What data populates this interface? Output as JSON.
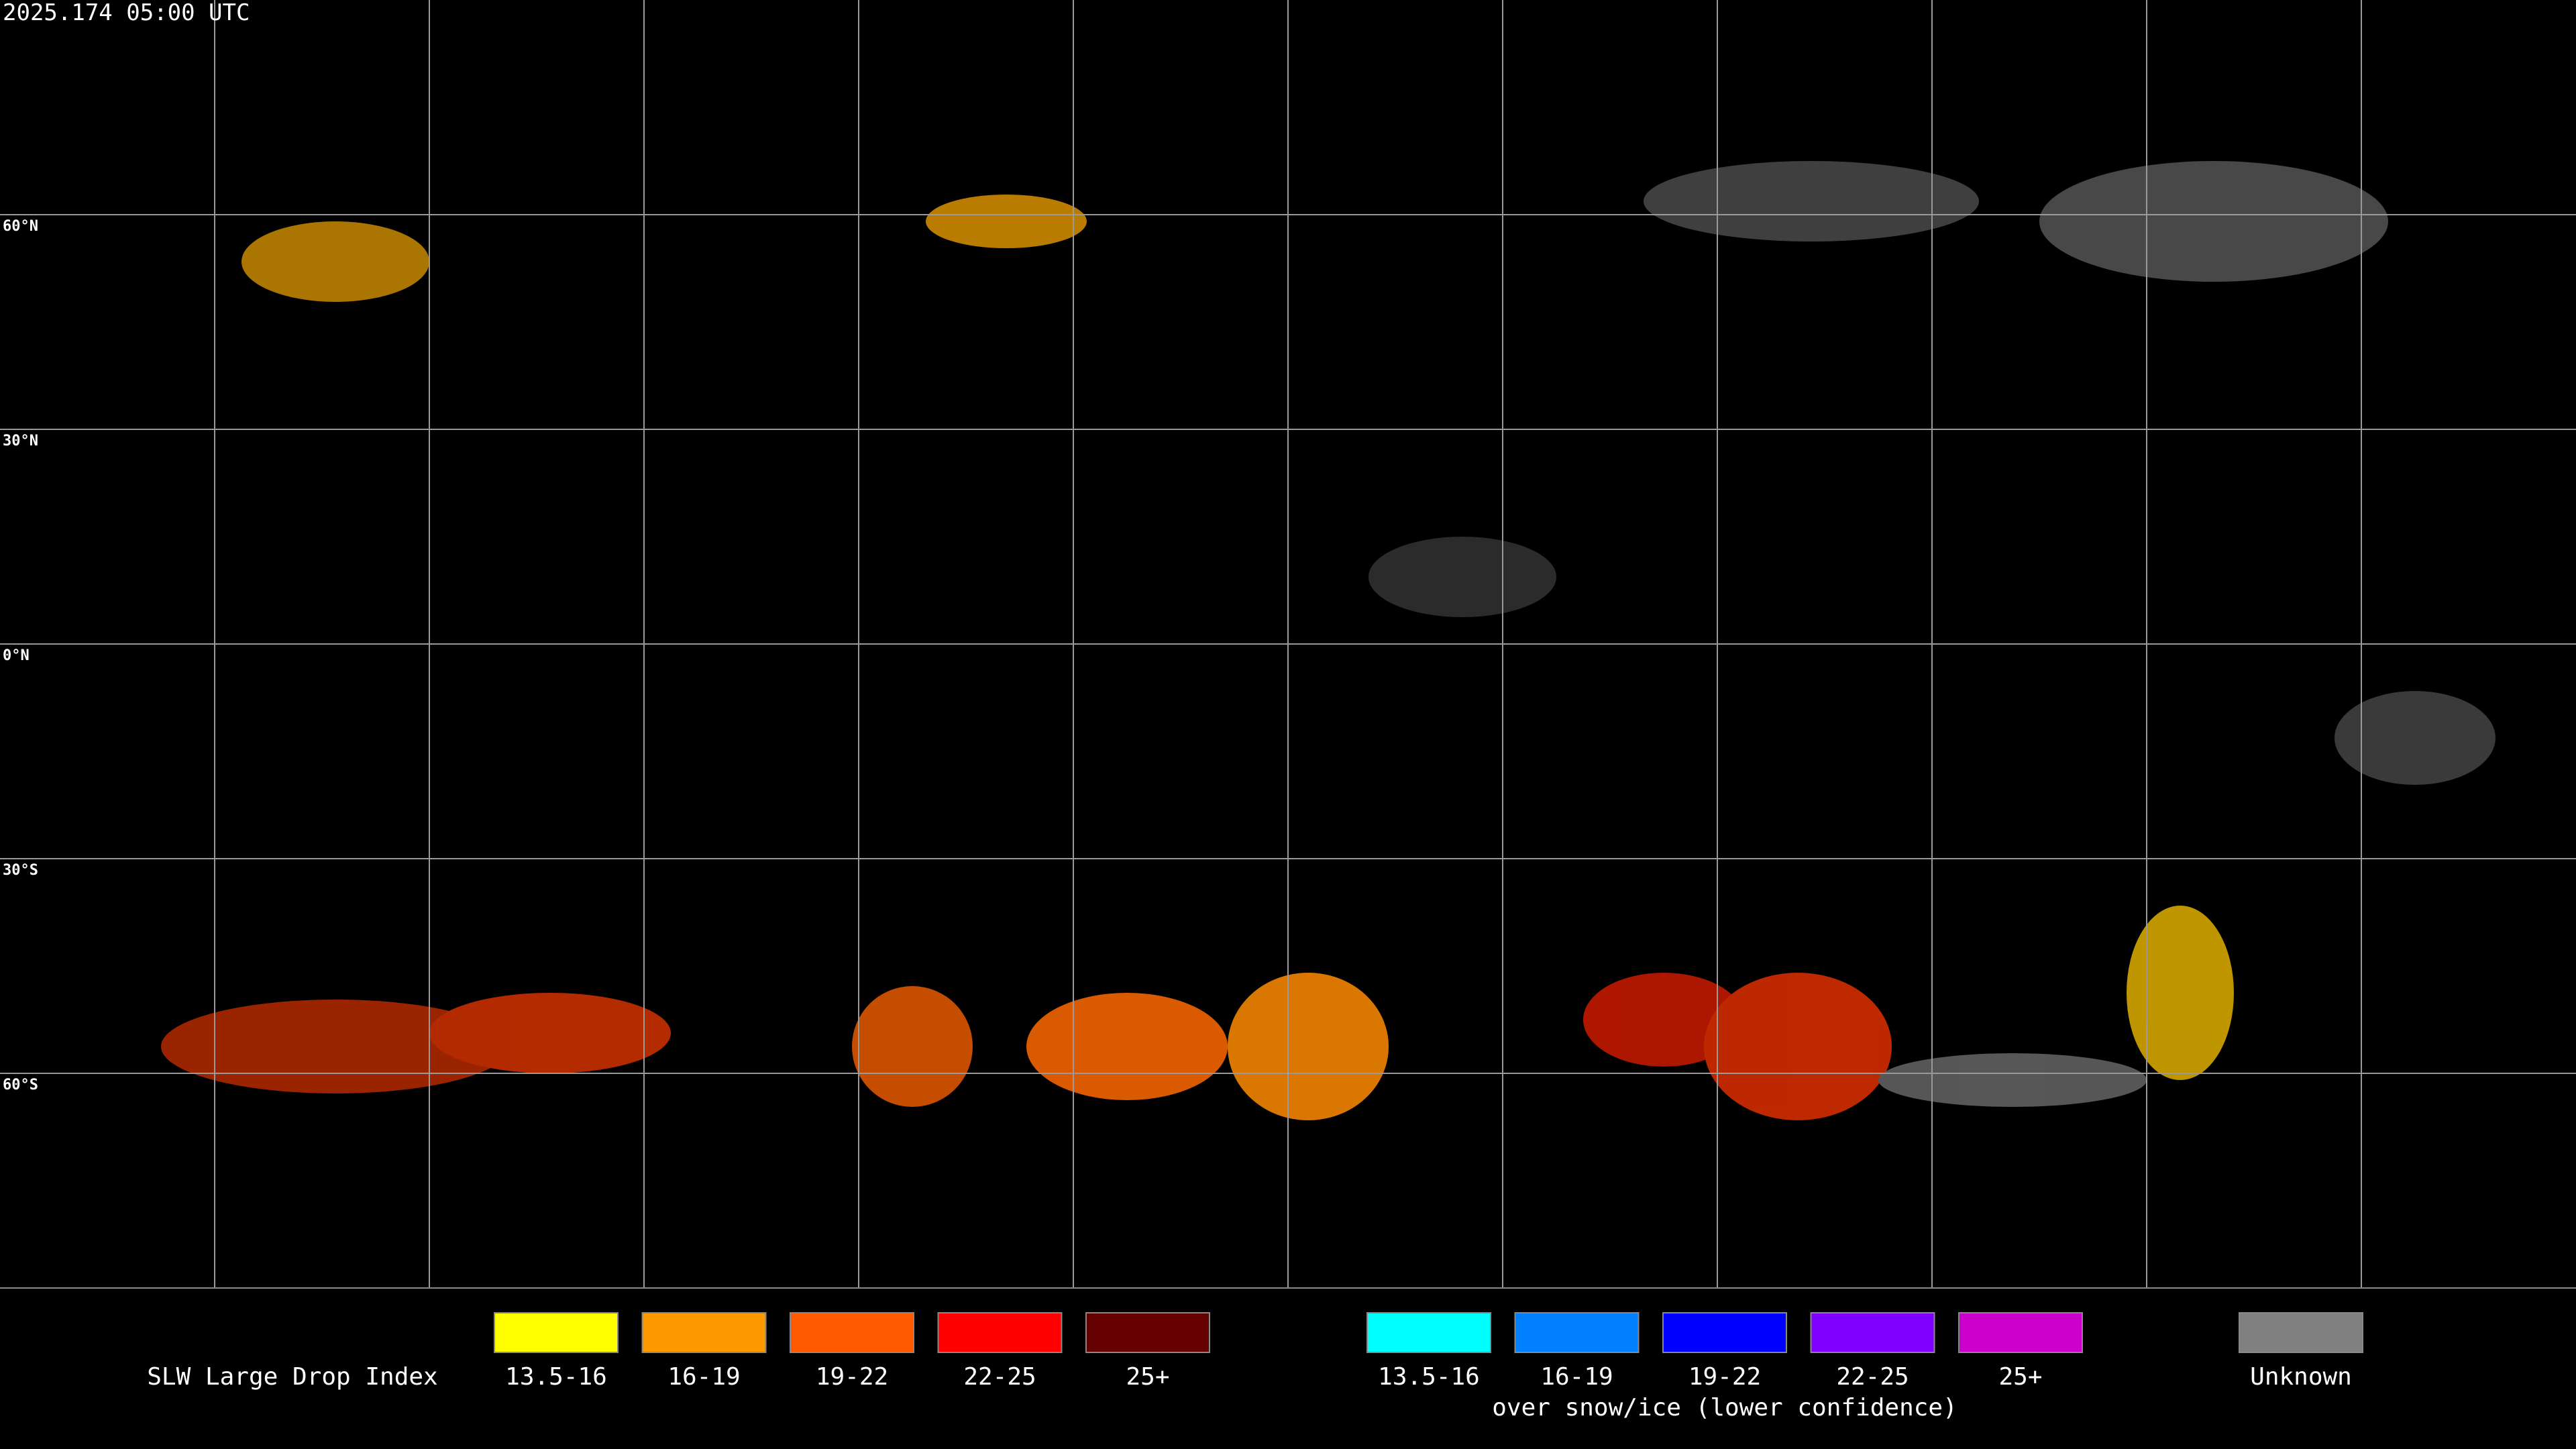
{
  "timestamp": "2025.174 05:00 UTC",
  "latitude_labels": [
    "60°N",
    "30°N",
    "0°N",
    "30°S",
    "60°S"
  ],
  "legend": {
    "title": "SLW Large Drop Index",
    "groups": [
      {
        "items": [
          {
            "label": "13.5-16",
            "color": "#ffff00"
          },
          {
            "label": "16-19",
            "color": "#ff9900"
          },
          {
            "label": "19-22",
            "color": "#ff5a00"
          },
          {
            "label": "22-25",
            "color": "#ff0000"
          },
          {
            "label": "25+",
            "color": "#650000"
          }
        ]
      },
      {
        "items": [
          {
            "label": "13.5-16",
            "color": "#00ffff"
          },
          {
            "label": "16-19",
            "color": "#0080ff"
          },
          {
            "label": "19-22",
            "color": "#0000ff"
          },
          {
            "label": "22-25",
            "color": "#8000ff"
          },
          {
            "label": "25+",
            "color": "#cc00cc"
          }
        ],
        "caption": "over snow/ice (lower confidence)"
      },
      {
        "items": [
          {
            "label": "Unknown",
            "color": "#808080"
          }
        ]
      }
    ]
  }
}
